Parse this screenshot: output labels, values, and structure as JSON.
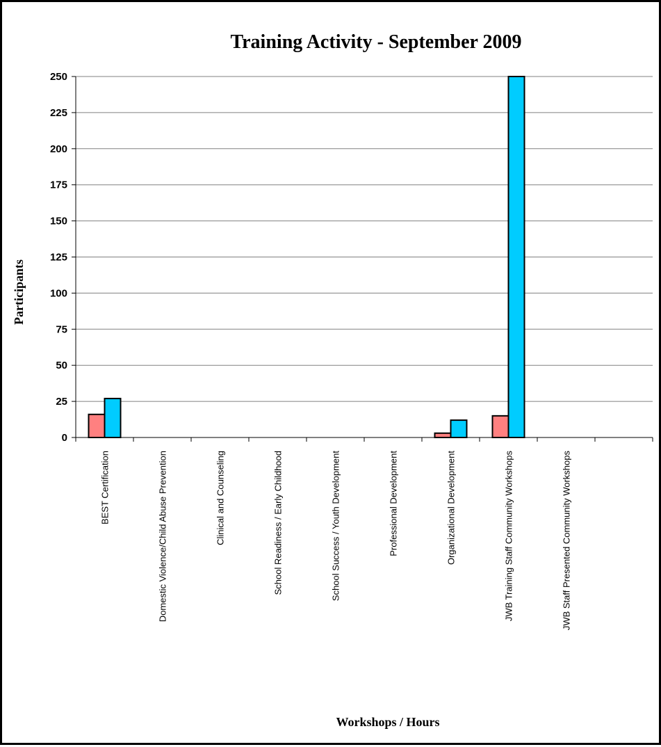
{
  "chart_data": {
    "type": "bar",
    "title": "Training Activity - September 2009",
    "xlabel": "Workshops / Hours",
    "ylabel": "Participants",
    "ylim": [
      0,
      250
    ],
    "yticks": [
      0,
      25,
      50,
      75,
      100,
      125,
      150,
      175,
      200,
      225,
      250
    ],
    "grid": true,
    "categories": [
      "BEST Certification",
      "Domestic Violence/Child Abuse Prevention",
      "Clinical and Counseling",
      "School Readiness / Early Childhood",
      "School Success / Youth Development",
      "Professional Development",
      "Organizational Development",
      "JWB Training Staff Community Workshops",
      "JWB Staff Presented Community Workshops",
      ""
    ],
    "series": [
      {
        "values": [
          16,
          0,
          0,
          0,
          0,
          0,
          3,
          15,
          0,
          0
        ]
      },
      {
        "values": [
          27,
          0,
          0,
          0,
          0,
          0,
          12,
          250,
          0,
          0
        ]
      }
    ],
    "colors": [
      "#ff8080",
      "#00ccff"
    ]
  }
}
